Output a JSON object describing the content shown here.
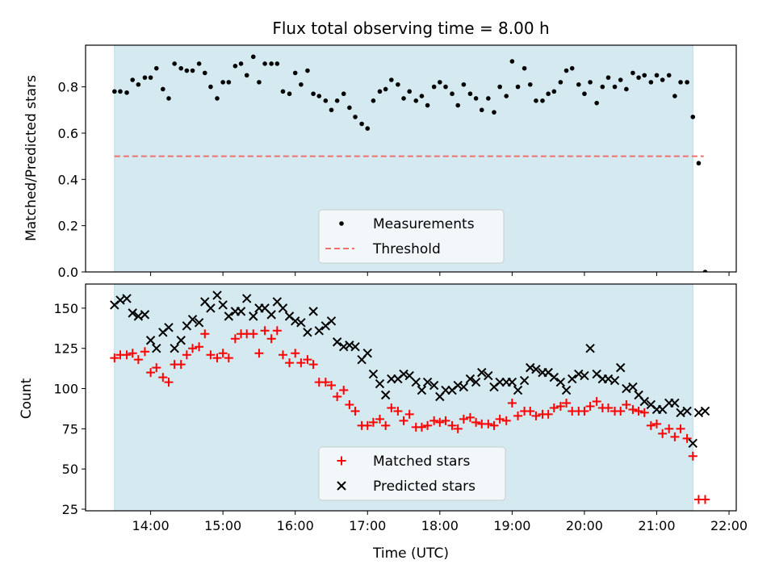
{
  "chart_data": [
    {
      "type": "scatter",
      "title": "Flux total observing time = 8.00 h",
      "xlabel": "",
      "ylabel": "Matched/Predicted stars",
      "xlim": [
        13.1,
        22.1
      ],
      "ylim": [
        0,
        0.98
      ],
      "xticks": [
        14,
        15,
        16,
        17,
        18,
        19,
        20,
        21,
        22
      ],
      "yticks": [
        0.0,
        0.2,
        0.4,
        0.6,
        0.8
      ],
      "ytick_labels": [
        "0.0",
        "0.2",
        "0.4",
        "0.6",
        "0.8"
      ],
      "observing_window": [
        13.5,
        21.5
      ],
      "observing_window_color": "#d4eaf0",
      "legend_position": "lower-center",
      "threshold": {
        "name": "Threshold",
        "value": 0.5,
        "x": [
          13.5,
          21.65
        ],
        "color": "#f07070",
        "style": "dashed"
      },
      "series": [
        {
          "name": "Measurements",
          "marker": "dot",
          "color": "#000000",
          "x": [
            13.5,
            13.58,
            13.67,
            13.75,
            13.83,
            13.92,
            14.0,
            14.08,
            14.17,
            14.25,
            14.33,
            14.42,
            14.5,
            14.58,
            14.67,
            14.75,
            14.83,
            14.92,
            15.0,
            15.08,
            15.17,
            15.25,
            15.33,
            15.42,
            15.5,
            15.58,
            15.67,
            15.75,
            15.83,
            15.92,
            16.0,
            16.08,
            16.17,
            16.25,
            16.33,
            16.42,
            16.5,
            16.58,
            16.67,
            16.75,
            16.83,
            16.92,
            17.0,
            17.08,
            17.17,
            17.25,
            17.33,
            17.42,
            17.5,
            17.58,
            17.67,
            17.75,
            17.83,
            17.92,
            18.0,
            18.08,
            18.17,
            18.25,
            18.33,
            18.42,
            18.5,
            18.58,
            18.67,
            18.75,
            18.83,
            18.92,
            19.0,
            19.08,
            19.17,
            19.25,
            19.33,
            19.42,
            19.5,
            19.58,
            19.67,
            19.75,
            19.83,
            19.92,
            20.0,
            20.08,
            20.17,
            20.25,
            20.33,
            20.42,
            20.5,
            20.58,
            20.67,
            20.75,
            20.83,
            20.92,
            21.0,
            21.08,
            21.17,
            21.25,
            21.33,
            21.42,
            21.5,
            21.58,
            21.67
          ],
          "y": [
            0.78,
            0.78,
            0.775,
            0.83,
            0.81,
            0.84,
            0.84,
            0.88,
            0.79,
            0.75,
            0.9,
            0.88,
            0.87,
            0.87,
            0.9,
            0.86,
            0.8,
            0.75,
            0.82,
            0.82,
            0.89,
            0.9,
            0.85,
            0.93,
            0.82,
            0.9,
            0.9,
            0.9,
            0.78,
            0.77,
            0.86,
            0.81,
            0.87,
            0.77,
            0.76,
            0.74,
            0.7,
            0.74,
            0.77,
            0.71,
            0.67,
            0.64,
            0.62,
            0.74,
            0.78,
            0.79,
            0.83,
            0.81,
            0.75,
            0.78,
            0.74,
            0.76,
            0.72,
            0.8,
            0.82,
            0.8,
            0.77,
            0.72,
            0.81,
            0.77,
            0.75,
            0.7,
            0.75,
            0.69,
            0.8,
            0.76,
            0.91,
            0.8,
            0.88,
            0.81,
            0.74,
            0.74,
            0.77,
            0.78,
            0.82,
            0.87,
            0.88,
            0.81,
            0.77,
            0.82,
            0.73,
            0.8,
            0.84,
            0.8,
            0.83,
            0.79,
            0.86,
            0.84,
            0.85,
            0.82,
            0.85,
            0.83,
            0.85,
            0.76,
            0.82,
            0.82,
            0.67,
            0.47,
            0.0
          ]
        }
      ]
    },
    {
      "type": "scatter",
      "title": "",
      "xlabel": "Time (UTC)",
      "ylabel": "Count",
      "xlim": [
        13.1,
        22.1
      ],
      "ylim": [
        24,
        165
      ],
      "xticks": [
        14,
        15,
        16,
        17,
        18,
        19,
        20,
        21,
        22
      ],
      "xtick_labels": [
        "14:00",
        "15:00",
        "16:00",
        "17:00",
        "18:00",
        "19:00",
        "20:00",
        "21:00",
        "22:00"
      ],
      "yticks": [
        25,
        50,
        75,
        100,
        125,
        150
      ],
      "ytick_labels": [
        "25",
        "50",
        "75",
        "100",
        "125",
        "150"
      ],
      "observing_window": [
        13.5,
        21.5
      ],
      "observing_window_color": "#d4eaf0",
      "legend_position": "lower-center",
      "series": [
        {
          "name": "Matched stars",
          "marker": "plus",
          "color": "#ff0000",
          "x": [
            13.5,
            13.58,
            13.67,
            13.75,
            13.83,
            13.92,
            14.0,
            14.08,
            14.17,
            14.25,
            14.33,
            14.42,
            14.5,
            14.58,
            14.67,
            14.75,
            14.83,
            14.92,
            15.0,
            15.08,
            15.17,
            15.25,
            15.33,
            15.42,
            15.5,
            15.58,
            15.67,
            15.75,
            15.83,
            15.92,
            16.0,
            16.08,
            16.17,
            16.25,
            16.33,
            16.42,
            16.5,
            16.58,
            16.67,
            16.75,
            16.83,
            16.92,
            17.0,
            17.08,
            17.17,
            17.25,
            17.33,
            17.42,
            17.5,
            17.58,
            17.67,
            17.75,
            17.83,
            17.92,
            18.0,
            18.08,
            18.17,
            18.25,
            18.33,
            18.42,
            18.5,
            18.58,
            18.67,
            18.75,
            18.83,
            18.92,
            19.0,
            19.08,
            19.17,
            19.25,
            19.33,
            19.42,
            19.5,
            19.58,
            19.67,
            19.75,
            19.83,
            19.92,
            20.0,
            20.08,
            20.17,
            20.25,
            20.33,
            20.42,
            20.5,
            20.58,
            20.67,
            20.75,
            20.83,
            20.92,
            21.0,
            21.08,
            21.17,
            21.25,
            21.33,
            21.42,
            21.5,
            21.58,
            21.67
          ],
          "y": [
            119,
            121,
            121,
            122,
            118,
            123,
            110,
            113,
            107,
            104,
            115,
            115,
            121,
            125,
            126,
            134,
            121,
            119,
            122,
            119,
            131,
            134,
            134,
            134,
            122,
            136,
            131,
            136,
            121,
            116,
            122,
            116,
            118,
            115,
            104,
            104,
            102,
            95,
            99,
            90,
            86,
            77,
            77,
            79,
            81,
            77,
            88,
            86,
            80,
            84,
            76,
            76,
            77,
            80,
            79,
            80,
            77,
            75,
            81,
            82,
            79,
            78,
            78,
            77,
            81,
            80,
            91,
            83,
            86,
            86,
            83,
            84,
            84,
            88,
            89,
            91,
            86,
            86,
            86,
            89,
            92,
            88,
            88,
            86,
            86,
            90,
            87,
            86,
            85,
            77,
            78,
            72,
            75,
            70,
            75,
            69,
            58,
            31,
            31
          ]
        },
        {
          "name": "Predicted stars",
          "marker": "x",
          "color": "#000000",
          "x": [
            13.5,
            13.58,
            13.67,
            13.75,
            13.83,
            13.92,
            14.0,
            14.08,
            14.17,
            14.25,
            14.33,
            14.42,
            14.5,
            14.58,
            14.67,
            14.75,
            14.83,
            14.92,
            15.0,
            15.08,
            15.17,
            15.25,
            15.33,
            15.42,
            15.5,
            15.58,
            15.67,
            15.75,
            15.83,
            15.92,
            16.0,
            16.08,
            16.17,
            16.25,
            16.33,
            16.42,
            16.5,
            16.58,
            16.67,
            16.75,
            16.83,
            16.92,
            17.0,
            17.08,
            17.17,
            17.25,
            17.33,
            17.42,
            17.5,
            17.58,
            17.67,
            17.75,
            17.83,
            17.92,
            18.0,
            18.08,
            18.17,
            18.25,
            18.33,
            18.42,
            18.5,
            18.58,
            18.67,
            18.75,
            18.83,
            18.92,
            19.0,
            19.08,
            19.17,
            19.25,
            19.33,
            19.42,
            19.5,
            19.58,
            19.67,
            19.75,
            19.83,
            19.92,
            20.0,
            20.08,
            20.17,
            20.25,
            20.33,
            20.42,
            20.5,
            20.58,
            20.67,
            20.75,
            20.83,
            20.92,
            21.0,
            21.08,
            21.17,
            21.25,
            21.33,
            21.42,
            21.5,
            21.58,
            21.67
          ],
          "y": [
            152,
            155,
            156,
            147,
            145,
            146,
            130,
            125,
            135,
            138,
            125,
            130,
            139,
            143,
            141,
            154,
            150,
            158,
            152,
            145,
            148,
            148,
            156,
            145,
            150,
            150,
            146,
            154,
            150,
            145,
            142,
            141,
            135,
            148,
            136,
            139,
            142,
            129,
            126,
            127,
            126,
            118,
            122,
            109,
            103,
            96,
            106,
            106,
            109,
            108,
            104,
            99,
            104,
            102,
            95,
            99,
            99,
            102,
            101,
            106,
            104,
            110,
            108,
            101,
            104,
            104,
            104,
            99,
            105,
            113,
            112,
            110,
            110,
            107,
            104,
            99,
            106,
            109,
            108,
            125,
            109,
            106,
            106,
            105,
            113,
            100,
            101,
            96,
            92,
            90,
            87,
            87,
            91,
            91,
            85,
            86,
            66,
            85,
            86
          ]
        }
      ]
    }
  ]
}
